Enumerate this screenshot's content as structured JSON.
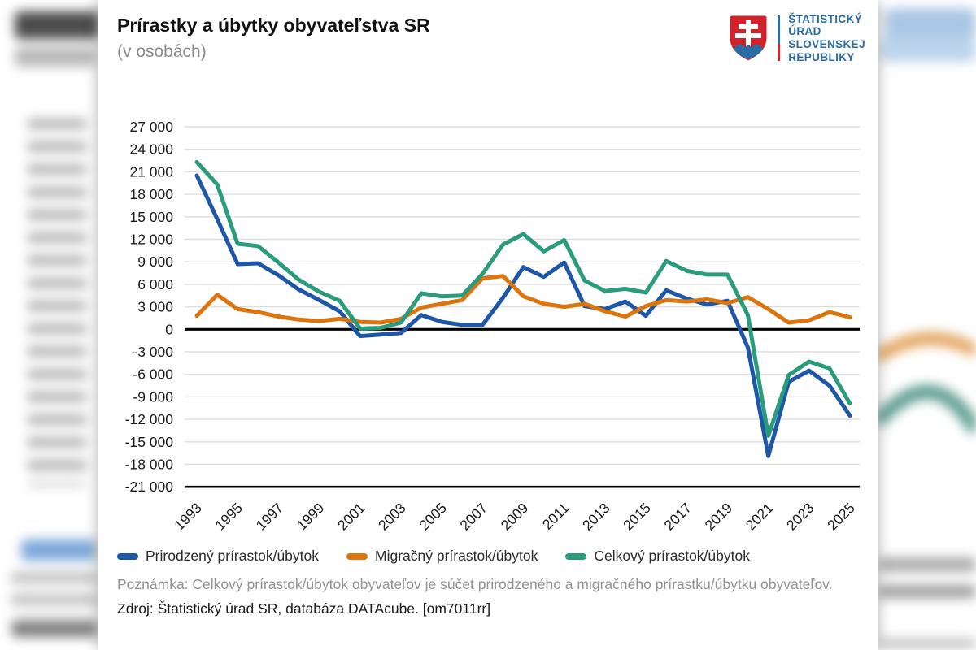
{
  "header": {
    "title": "Prírastky a úbytky obyvateľstva SR",
    "subtitle": "(v osobách)"
  },
  "logo": {
    "org_lines": [
      "ŠTATISTICKÝ",
      "ÚRAD",
      "SLOVENSKEJ",
      "REPUBLIKY"
    ],
    "blue": "#2a6ca6",
    "red": "#d2232a"
  },
  "legend": [
    {
      "label": "Prirodzený prírastok/úbytok",
      "color": "#1f57a8"
    },
    {
      "label": "Migračný prírastok/úbytok",
      "color": "#dd750f"
    },
    {
      "label": "Celkový prírastok/úbytok",
      "color": "#2a9c7c"
    }
  ],
  "note": "Poznámka: Celkový prírastok/úbytok obyvateľov je súčet prirodzeného a migračného prírastku/úbytku obyvateľov.",
  "source": "Zdroj: Štatistický úrad SR, databáza DATAcube. [om7011rr]",
  "chart_data": {
    "type": "line",
    "title": "Prírastky a úbytky obyvateľstva SR (v osobách)",
    "x": [
      1993,
      1994,
      1995,
      1996,
      1997,
      1998,
      1999,
      2000,
      2001,
      2002,
      2003,
      2004,
      2005,
      2006,
      2007,
      2008,
      2009,
      2010,
      2011,
      2012,
      2013,
      2014,
      2015,
      2016,
      2017,
      2018,
      2019,
      2020,
      2021,
      2022,
      2023,
      2024,
      2025
    ],
    "x_tick_labels": [
      "1993",
      "1995",
      "1997",
      "1999",
      "2001",
      "2003",
      "2005",
      "2007",
      "2009",
      "2011",
      "2013",
      "2015",
      "2017",
      "2019",
      "2021",
      "2023",
      "2025"
    ],
    "ylim": [
      -21000,
      27000
    ],
    "ytick_step": 3000,
    "grid": "horizontal",
    "grid_color": "#dedede",
    "axis_color": "#000000",
    "zero_line": true,
    "legend_position": "bottom",
    "series": [
      {
        "name": "Prirodzený prírastok/úbytok",
        "color": "#1f57a8",
        "values": [
          20500,
          14700,
          8700,
          8800,
          7200,
          5300,
          3900,
          2400,
          -900,
          -700,
          -500,
          1900,
          1000,
          600,
          600,
          4200,
          8300,
          7000,
          8900,
          3100,
          2700,
          3700,
          1800,
          5200,
          4100,
          3300,
          3800,
          -2400,
          -16900,
          -7000,
          -5500,
          -7500,
          -11500
        ]
      },
      {
        "name": "Migračný prírastok/úbytok",
        "color": "#dd750f",
        "values": [
          1800,
          4600,
          2700,
          2300,
          1700,
          1300,
          1100,
          1400,
          1000,
          900,
          1400,
          2900,
          3400,
          3900,
          6800,
          7100,
          4400,
          3400,
          3000,
          3400,
          2400,
          1700,
          3100,
          3900,
          3700,
          4000,
          3500,
          4300,
          2700,
          900,
          1200,
          2300,
          1600
        ]
      },
      {
        "name": "Celkový prírastok/úbytok",
        "color": "#2a9c7c",
        "values": [
          22300,
          19300,
          11400,
          11100,
          8900,
          6600,
          5000,
          3800,
          100,
          200,
          900,
          4800,
          4400,
          4500,
          7400,
          11300,
          12700,
          10400,
          11900,
          6500,
          5100,
          5400,
          4900,
          9100,
          7800,
          7300,
          7300,
          1900,
          -14200,
          -6100,
          -4300,
          -5200,
          -9900
        ]
      }
    ]
  }
}
